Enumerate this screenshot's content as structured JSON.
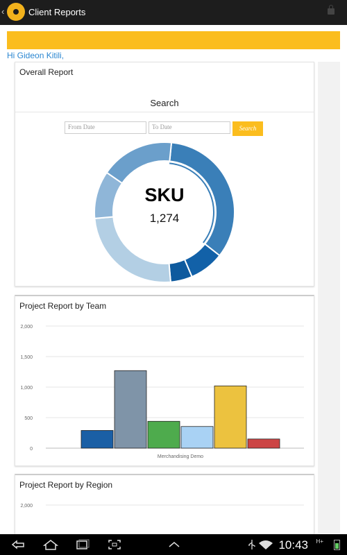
{
  "app": {
    "title": "Client Reports"
  },
  "greeting": "Hi Gideon Kitili,",
  "overall": {
    "title": "Overall Report",
    "search_title": "Search",
    "from_placeholder": "From Date",
    "to_placeholder": "To Date",
    "search_button": "Search",
    "donut_label": "SKU",
    "donut_value": "1,274",
    "segments": [
      {
        "value": 34,
        "color": "#3a7fb8"
      },
      {
        "value": 8,
        "color": "#1261a8"
      },
      {
        "value": 5,
        "color": "#0e5a9e"
      },
      {
        "value": 25,
        "color": "#b3cfe4"
      },
      {
        "value": 11,
        "color": "#8fb6d8"
      },
      {
        "value": 17,
        "color": "#6b9fcb"
      }
    ]
  },
  "team_report": {
    "title": "Project Report by Team"
  },
  "region_report": {
    "title": "Project Report by Region"
  },
  "chart_data": [
    {
      "type": "bar",
      "title": "Project Report by Team",
      "categories": [
        "Merchandising Demo"
      ],
      "series": [
        {
          "value": 290,
          "color": "#1a5fa5"
        },
        {
          "value": 1270,
          "color": "#7f94a8"
        },
        {
          "value": 440,
          "color": "#4eab4d"
        },
        {
          "value": 355,
          "color": "#a9d2f4"
        },
        {
          "value": 1020,
          "color": "#ecc23f"
        },
        {
          "value": 150,
          "color": "#cc4444"
        }
      ],
      "yticks": [
        "0",
        "500",
        "1,000",
        "1,500",
        "2,000"
      ],
      "ylim": [
        0,
        2000
      ],
      "grid": true
    },
    {
      "type": "bar",
      "title": "Project Report by Region",
      "yticks": [
        "2,000"
      ],
      "grid": true
    }
  ],
  "statusbar": {
    "time": "10:43",
    "network": "H+"
  }
}
